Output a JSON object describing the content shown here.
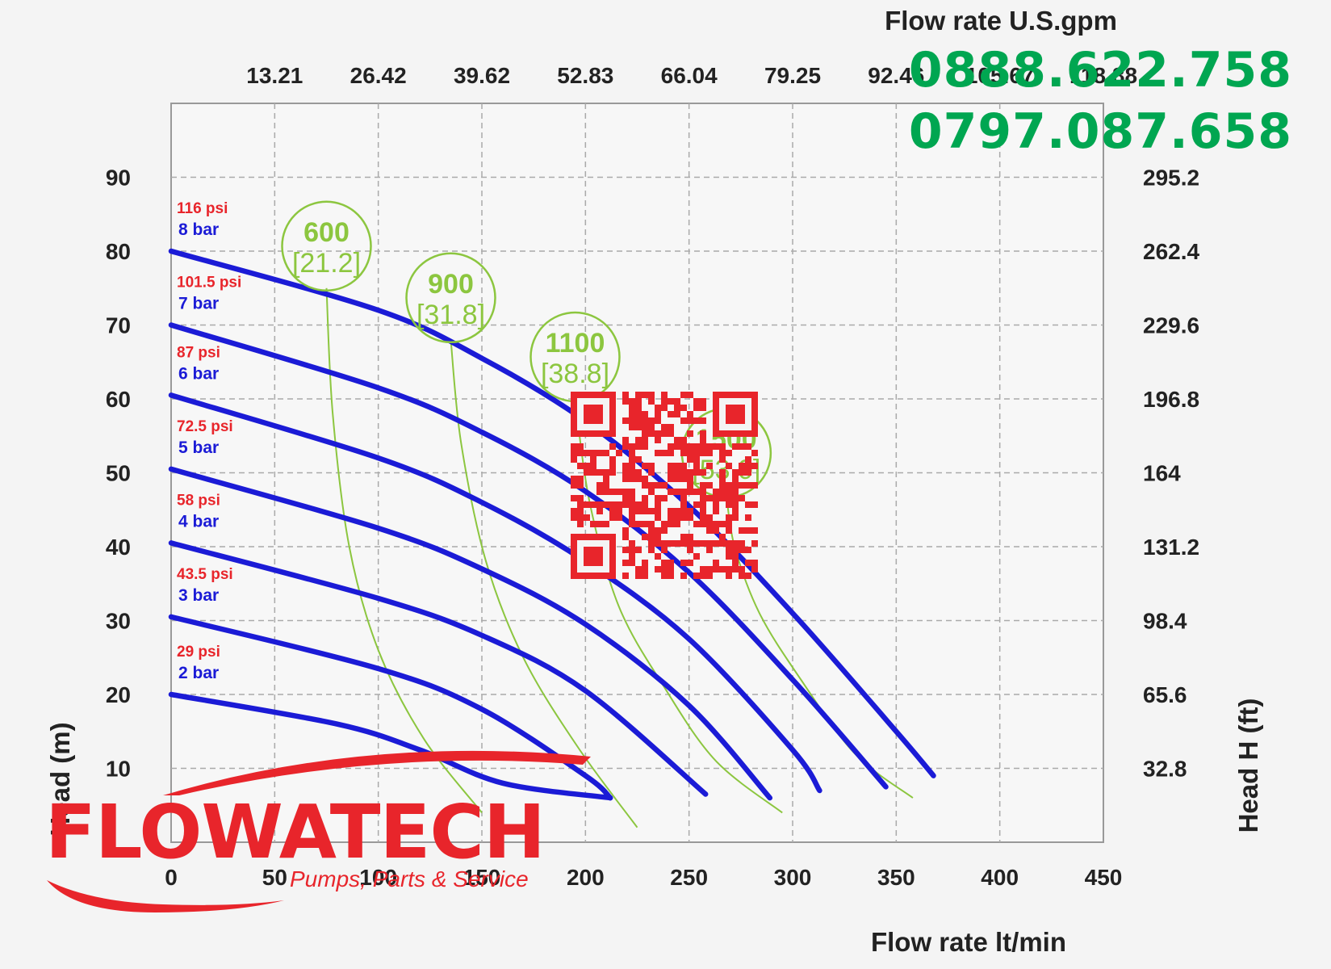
{
  "chart_data": {
    "type": "line",
    "title": "",
    "xlabel": "Flow rate lt/min",
    "x2label": "Flow rate U.S.gpm",
    "ylabel": "Head (m)",
    "y2label": "Head H (ft)",
    "xlim": [
      0,
      450
    ],
    "ylim": [
      0,
      100
    ],
    "x_ticks": [
      "0",
      "50",
      "100",
      "150",
      "200",
      "250",
      "300",
      "350",
      "400",
      "450"
    ],
    "x2_ticks": [
      "13.21",
      "26.42",
      "39.62",
      "52.83",
      "66.04",
      "79.25",
      "92.46",
      "105.67",
      "118.88"
    ],
    "y_ticks": [
      "10",
      "20",
      "30",
      "40",
      "50",
      "60",
      "70",
      "80",
      "90"
    ],
    "y2_ticks": [
      "32.8",
      "65.6",
      "98.4",
      "131.2",
      "164",
      "196.8",
      "229.6",
      "262.4",
      "295.2"
    ],
    "grid": true,
    "series": [
      {
        "name": "8 bar",
        "psi": "116 psi",
        "x": [
          0,
          100,
          150,
          200,
          250,
          300,
          350,
          368
        ],
        "y": [
          80,
          72,
          65.5,
          57,
          45.5,
          31,
          15,
          9
        ]
      },
      {
        "name": "7 bar",
        "psi": "101.5 psi",
        "x": [
          0,
          100,
          150,
          200,
          250,
          300,
          345
        ],
        "y": [
          70,
          61.5,
          55.5,
          47.5,
          36.5,
          22,
          7.5
        ]
      },
      {
        "name": "6 bar",
        "psi": "87 psi",
        "x": [
          0,
          100,
          150,
          200,
          250,
          300,
          313
        ],
        "y": [
          60.5,
          52,
          46,
          38,
          27.5,
          12.5,
          7
        ]
      },
      {
        "name": "5 bar",
        "psi": "72.5 psi",
        "x": [
          0,
          100,
          150,
          200,
          250,
          289
        ],
        "y": [
          50.5,
          42.5,
          37,
          29.5,
          18.5,
          6
        ]
      },
      {
        "name": "4 bar",
        "psi": "58 psi",
        "x": [
          0,
          100,
          150,
          200,
          258
        ],
        "y": [
          40.5,
          33,
          28,
          20.5,
          6.5
        ]
      },
      {
        "name": "3 bar",
        "psi": "43.5 psi",
        "x": [
          0,
          100,
          150,
          200,
          212
        ],
        "y": [
          30.5,
          23.5,
          18,
          9,
          6
        ]
      },
      {
        "name": "2 bar",
        "psi": "29 psi",
        "x": [
          0,
          80,
          120,
          160,
          212
        ],
        "y": [
          20,
          16,
          12.5,
          8,
          6
        ]
      }
    ],
    "power_curves": [
      {
        "rpm": "600",
        "kw": "[21.2]",
        "x": [
          75,
          78,
          86,
          100,
          122,
          150
        ],
        "y": [
          75,
          58,
          40,
          26,
          14,
          4
        ]
      },
      {
        "rpm": "900",
        "kw": "[31.8]",
        "x": [
          135,
          140,
          152,
          170,
          196,
          225
        ],
        "y": [
          68,
          54,
          38,
          25,
          13,
          2
        ]
      },
      {
        "rpm": "1100",
        "kw": "[38.8]",
        "x": [
          195,
          202,
          216,
          238,
          263,
          295
        ],
        "y": [
          60,
          46,
          32,
          21,
          11,
          4
        ]
      },
      {
        "rpm": "1500",
        "kw": "[53.0]",
        "x": [
          268,
          272,
          284,
          304,
          330,
          358
        ],
        "y": [
          47,
          40,
          31,
          22,
          12,
          6
        ]
      }
    ]
  },
  "contact": {
    "phone_1": "0888.622.758",
    "phone_2": "0797.087.658"
  },
  "brand": {
    "name": "FLOWATECH",
    "tagline": "Pumps, Parts & Service",
    "color": "#e8252b"
  },
  "colors": {
    "pressure_curve": "#1b1bd6",
    "power_curve": "#8cc63f",
    "phone": "#00a651",
    "qr": "#e8252b"
  }
}
